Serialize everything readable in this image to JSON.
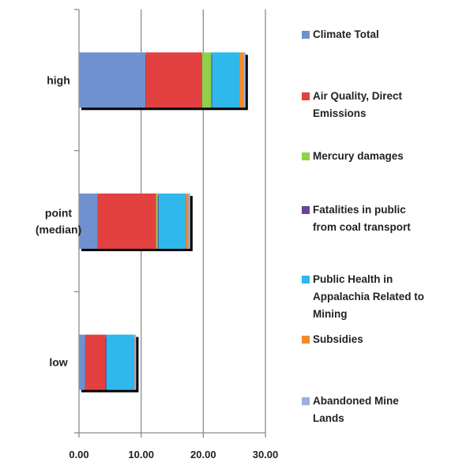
{
  "chart_data": {
    "type": "bar",
    "orientation": "horizontal",
    "stacked": true,
    "categories": [
      {
        "label_lines": [
          "high"
        ]
      },
      {
        "label_lines": [
          "point",
          "(median)"
        ]
      },
      {
        "label_lines": [
          "low"
        ]
      }
    ],
    "series": [
      {
        "name": "Climate Total",
        "name_lines": [
          "Climate Total"
        ],
        "color": "#6f91cf",
        "values": [
          10.7,
          3.0,
          1.0
        ]
      },
      {
        "name": "Air Quality, Direct Emissions",
        "name_lines": [
          "Air Quality, Direct",
          "Emissions"
        ],
        "color": "#e34040",
        "values": [
          9.1,
          9.4,
          3.3
        ]
      },
      {
        "name": "Mercury damages",
        "name_lines": [
          "Mercury damages"
        ],
        "color": "#8fd14a",
        "values": [
          1.5,
          0.3,
          0.0
        ]
      },
      {
        "name": "Fatalities in public from coal transport",
        "name_lines": [
          "Fatalities in public",
          "from coal transport"
        ],
        "color": "#7040a0",
        "values": [
          0.1,
          0.1,
          0.1
        ]
      },
      {
        "name": "Public Health in Appalachia Related to Mining",
        "name_lines": [
          "Public Health in",
          "Appalachia Related to",
          "Mining"
        ],
        "color": "#2fb8ec",
        "values": [
          4.4,
          4.4,
          4.4
        ]
      },
      {
        "name": "Subsidies",
        "name_lines": [
          "Subsidies"
        ],
        "color": "#f58a2c",
        "values": [
          0.7,
          0.4,
          0.1
        ]
      },
      {
        "name": "Abandoned Mine Lands",
        "name_lines": [
          "Abandoned Mine",
          "Lands"
        ],
        "color": "#97b2df",
        "values": [
          0.3,
          0.3,
          0.3
        ]
      }
    ],
    "xlim": [
      0,
      30
    ],
    "x_ticks": [
      0,
      10,
      20,
      30
    ],
    "x_tick_labels": [
      "0.00",
      "10.00",
      "20.00",
      "30.00"
    ],
    "grid": "vertical",
    "legend_position": "right",
    "title": "",
    "xlabel": "",
    "ylabel": ""
  }
}
